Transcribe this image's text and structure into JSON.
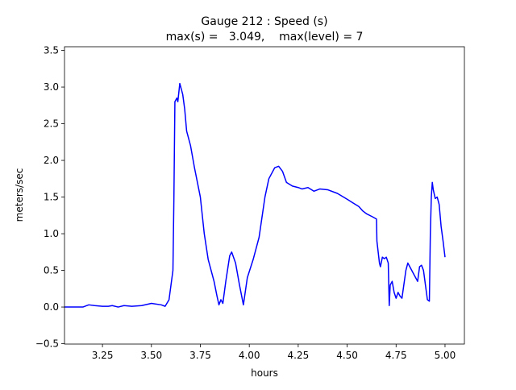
{
  "chart_data": {
    "type": "line",
    "title": "Gauge 212 : Speed (s)",
    "subtitle": "max(s) =   3.049,    max(level) = 7",
    "x_label": "hours",
    "y_label": "meters/sec",
    "xlim": [
      3.056,
      5.099
    ],
    "ylim": [
      -0.505,
      3.55
    ],
    "xticks": [
      3.25,
      {
        "value": 3.5,
        "label": "3.50"
      },
      3.75,
      {
        "value": 4.0,
        "label": "4.00"
      },
      4.25,
      {
        "value": 4.5,
        "label": "4.50"
      },
      4.75,
      {
        "value": 5.0,
        "label": "5.00"
      }
    ],
    "yticks": [
      {
        "value": -0.5,
        "label": "−0.5"
      },
      {
        "value": 0,
        "label": "0.0"
      },
      0.5,
      {
        "value": 1,
        "label": "1.0"
      },
      1.5,
      {
        "value": 2,
        "label": "2.0"
      },
      2.5,
      {
        "value": 3,
        "label": "3.0"
      },
      3.5
    ],
    "series": [
      {
        "color": "#0000ff",
        "x": [
          3.056,
          3.15,
          3.18,
          3.21,
          3.25,
          3.28,
          3.3,
          3.33,
          3.36,
          3.4,
          3.45,
          3.5,
          3.55,
          3.57,
          3.59,
          3.61,
          3.615,
          3.62,
          3.63,
          3.635,
          3.645,
          3.66,
          3.67,
          3.68,
          3.7,
          3.72,
          3.75,
          3.77,
          3.79,
          3.82,
          3.835,
          3.845,
          3.855,
          3.865,
          3.88,
          3.9,
          3.91,
          3.93,
          3.95,
          3.97,
          3.99,
          4.02,
          4.05,
          4.08,
          4.1,
          4.13,
          4.15,
          4.17,
          4.19,
          4.22,
          4.25,
          4.27,
          4.3,
          4.33,
          4.36,
          4.4,
          4.45,
          4.5,
          4.53,
          4.56,
          4.58,
          4.6,
          4.63,
          4.65,
          4.652,
          4.665,
          4.67,
          4.68,
          4.69,
          4.7,
          4.71,
          4.715,
          4.72,
          4.73,
          4.74,
          4.75,
          4.76,
          4.77,
          4.78,
          4.8,
          4.81,
          4.82,
          4.84,
          4.86,
          4.87,
          4.88,
          4.89,
          4.9,
          4.91,
          4.92,
          4.925,
          4.93,
          4.935,
          4.94,
          4.95,
          4.96,
          4.97,
          4.98,
          4.99,
          5.0
        ],
        "values": [
          0,
          0,
          0.03,
          0.02,
          0.01,
          0.01,
          0.02,
          0,
          0.02,
          0.01,
          0.02,
          0.05,
          0.03,
          0.01,
          0.1,
          0.5,
          1.5,
          2.8,
          2.85,
          2.8,
          3.049,
          2.9,
          2.7,
          2.4,
          2.2,
          1.9,
          1.5,
          1.0,
          0.65,
          0.35,
          0.15,
          0.03,
          0.1,
          0.05,
          0.35,
          0.7,
          0.75,
          0.6,
          0.3,
          0.03,
          0.4,
          0.65,
          0.95,
          1.5,
          1.75,
          1.9,
          1.92,
          1.85,
          1.7,
          1.65,
          1.63,
          1.61,
          1.63,
          1.58,
          1.61,
          1.6,
          1.55,
          1.47,
          1.42,
          1.37,
          1.31,
          1.27,
          1.23,
          1.2,
          0.9,
          0.6,
          0.55,
          0.68,
          0.66,
          0.68,
          0.6,
          0.02,
          0.3,
          0.35,
          0.2,
          0.12,
          0.2,
          0.15,
          0.12,
          0.5,
          0.6,
          0.55,
          0.45,
          0.35,
          0.55,
          0.57,
          0.5,
          0.3,
          0.1,
          0.08,
          1.0,
          1.5,
          1.7,
          1.6,
          1.48,
          1.5,
          1.4,
          1.1,
          0.9,
          0.68
        ]
      }
    ]
  }
}
